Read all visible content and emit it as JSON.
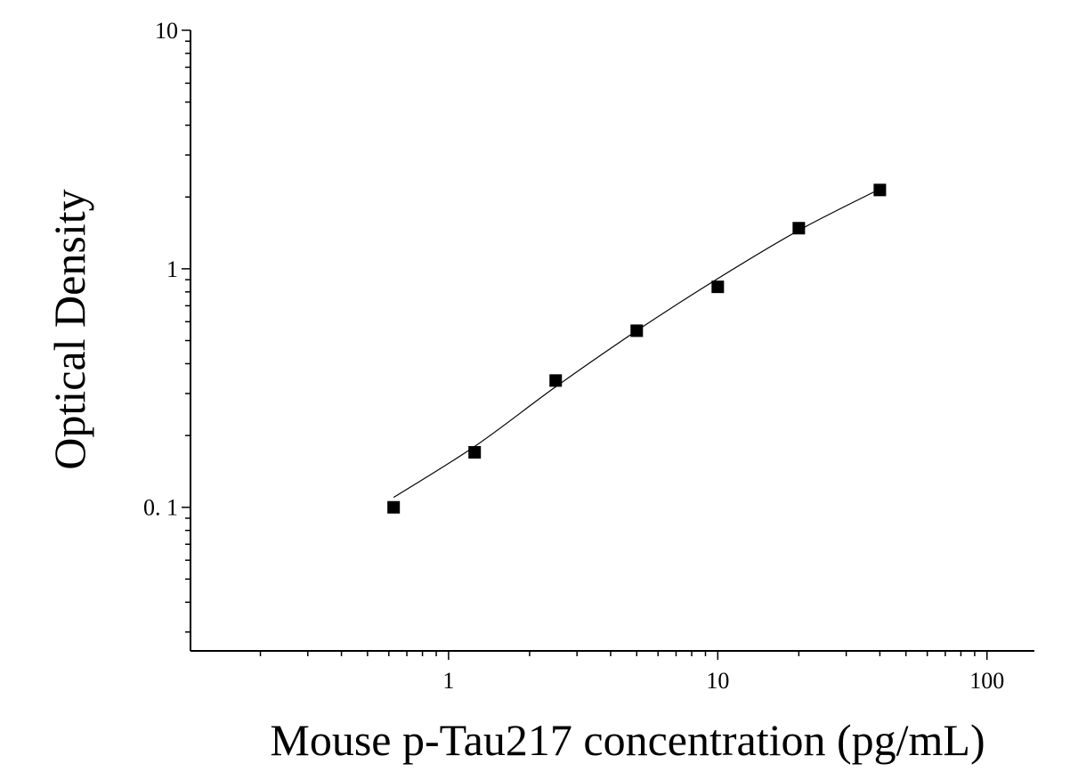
{
  "chart_data": {
    "type": "scatter",
    "title": "",
    "xlabel": "Mouse p-Tau217 concentration (pg/mL)",
    "ylabel": "Optical Density",
    "x_scale": "log",
    "y_scale": "log",
    "xlim": [
      0.11,
      150
    ],
    "ylim": [
      0.025,
      10
    ],
    "x_tick_labels": [
      {
        "value": 1,
        "label": "1"
      },
      {
        "value": 10,
        "label": "10"
      },
      {
        "value": 100,
        "label": "100"
      }
    ],
    "y_tick_labels": [
      {
        "value": 0.1,
        "label": "0. 1"
      },
      {
        "value": 1,
        "label": "1"
      },
      {
        "value": 10,
        "label": "10"
      }
    ],
    "grid": false,
    "legend": "none",
    "series": [
      {
        "marker": "square",
        "color": "#000000",
        "points": [
          {
            "x": 0.625,
            "y": 0.1
          },
          {
            "x": 1.25,
            "y": 0.17
          },
          {
            "x": 2.5,
            "y": 0.34
          },
          {
            "x": 5,
            "y": 0.55
          },
          {
            "x": 10,
            "y": 0.84
          },
          {
            "x": 20,
            "y": 1.48
          },
          {
            "x": 40,
            "y": 2.14
          }
        ]
      }
    ],
    "fit_curve": {
      "color": "#000000",
      "points": [
        {
          "x": 0.625,
          "y": 0.11
        },
        {
          "x": 1.25,
          "y": 0.18
        },
        {
          "x": 2.5,
          "y": 0.32
        },
        {
          "x": 5,
          "y": 0.55
        },
        {
          "x": 10,
          "y": 0.91
        },
        {
          "x": 20,
          "y": 1.45
        },
        {
          "x": 40,
          "y": 2.16
        }
      ]
    }
  }
}
